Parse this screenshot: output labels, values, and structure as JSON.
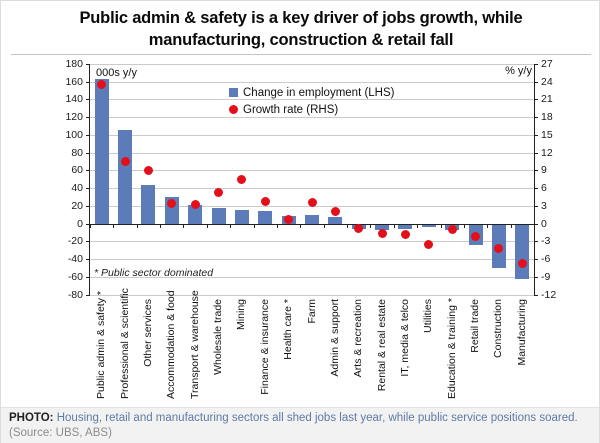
{
  "title": "Public admin & safety is a key driver of jobs growth, while manufacturing, construction & retail fall",
  "chart_data": {
    "type": "bar",
    "subtype": "dual-axis bar with scatter overlay",
    "title": "Public admin & safety is a key driver of jobs growth, while manufacturing, construction & retail fall",
    "categories": [
      "Public admin & safety *",
      "Professional & scientific",
      "Other services",
      "Accommodation & food",
      "Transport & warehouse",
      "Wholesale trade",
      "Mining",
      "Finance & insurance",
      "Health care *",
      "Farm",
      "Admin & support",
      "Arts & recreation",
      "Rental & real estate",
      "IT, media & telco",
      "Utilities",
      "Education & training *",
      "Retail trade",
      "Construction",
      "Manufacturing"
    ],
    "series": [
      {
        "name": "Change in employment (LHS)",
        "type": "bar",
        "axis": "left",
        "color": "#5b7cb8",
        "values": [
          163,
          105,
          43,
          30,
          21,
          18,
          15,
          14,
          9,
          10,
          7,
          -5,
          -6,
          -5,
          -3,
          -6,
          -23,
          -49,
          -61
        ]
      },
      {
        "name": "Growth rate (RHS)",
        "type": "scatter",
        "axis": "right",
        "color": "#e3101c",
        "values": [
          23.5,
          10.5,
          9,
          3.4,
          3.2,
          5.3,
          7.5,
          3.8,
          0.7,
          3.6,
          2.1,
          -0.9,
          -1.7,
          -1.8,
          -3.6,
          -1.0,
          -2.2,
          -4.2,
          -6.8
        ]
      }
    ],
    "left_axis": {
      "label": "000s y/y",
      "min": -80,
      "max": 180,
      "tick_step": 20,
      "ticks": [
        180,
        160,
        140,
        120,
        100,
        80,
        60,
        40,
        20,
        0,
        -20,
        -40,
        -60,
        -80
      ]
    },
    "right_axis": {
      "label": "% y/y",
      "min": -12,
      "max": 27,
      "tick_step": 3,
      "ticks": [
        27,
        24,
        21,
        18,
        15,
        12,
        9,
        6,
        3,
        0,
        -3,
        -6,
        -9,
        -12
      ]
    },
    "grid": true,
    "legend_position": "top-center-inside",
    "note": "* Public sector dominated"
  },
  "footer": {
    "photo_label": "PHOTO:",
    "caption": "Housing, retail and manufacturing sectors all shed jobs last year, while public service positions soared.",
    "source": "(Source: UBS, ABS)"
  }
}
